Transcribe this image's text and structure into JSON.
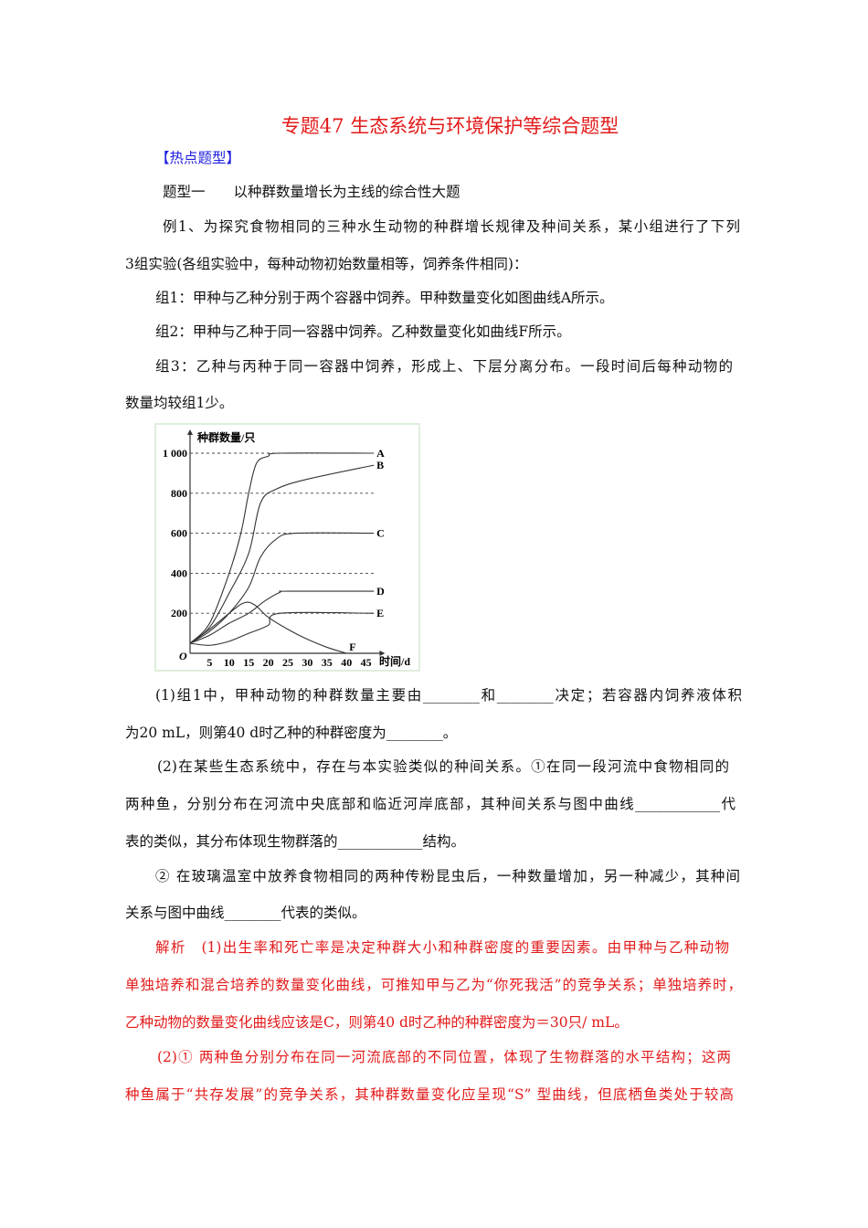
{
  "title": "专题47  生态系统与环境保护等综合题型",
  "section_tag": "【热点题型】",
  "type_heading": "题型一　　以种群数量增长为主线的综合性大题",
  "lines": [
    "例1、为探究食物相同的三种水生动物的种群增长规律及种间关系，某小组进行了下列",
    "3组实验(各组实验中，每种动物初始数量相等，饲养条件相同)：",
    "组1：甲种与乙种分别于两个容器中饲养。甲种数量变化如图曲线A所示。",
    "组2：甲种与乙种于同一容器中饲养。乙种数量变化如曲线F所示。",
    "组3：乙种与丙种于同一容器中饲养，形成上、下层分离分布。一段时间后每种动物的",
    "数量均较组1少。"
  ],
  "questions": [
    "(1)组1中，甲种动物的种群数量主要由________和________决定；若容器内饲养液体积",
    "为20 mL，则第40 d时乙种的种群密度为________。",
    "(2)在某些生态系统中，存在与本实验类似的种间关系。①在同一段河流中食物相同的",
    "两种鱼，分别分布在河流中央底部和临近河岸底部，其种间关系与图中曲线____________代",
    "表的类似，其分布体现生物群落的____________结构。",
    "② 在玻璃温室中放养食物相同的两种传粉昆虫后，一种数量增加，另一种减少，其种间",
    "关系与图中曲线________代表的类似。"
  ],
  "analysis": [
    "解析　(1)出生率和死亡率是决定种群大小和种群密度的重要因素。由甲种与乙种动物",
    "单独培养和混合培养的数量变化曲线，可推知甲与乙为“你死我活”的竞争关系；单独培养时，",
    "乙种动物的数量变化曲线应该是C，则第40 d时乙种的种群密度为＝30只/ mL。",
    "(2)① 两种鱼分别分布在同一河流底部的不同位置，体现了生物群落的水平结构；这两",
    "种鱼属于“共存发展”的竞争关系，其种群数量变化应呈现“S” 型曲线，但底栖鱼类处于较高"
  ],
  "colors": {
    "title": "#e31a1a",
    "tag": "#1f1fe0",
    "analysis": "#e31a1a"
  },
  "chart_data": {
    "type": "line",
    "ylabel": "种群数量/只",
    "xlabel": "时间/d",
    "origin_label": "O",
    "xlim": [
      0,
      48
    ],
    "ylim": [
      0,
      1050
    ],
    "xticks": [
      5,
      10,
      15,
      20,
      25,
      30,
      35,
      40,
      45
    ],
    "yticks": [
      200,
      400,
      600,
      800,
      1000
    ],
    "ytick_labels": [
      "200",
      "400",
      "600",
      "800",
      "1 000"
    ],
    "grid": "dashed horizontal at y ticks",
    "series": [
      {
        "name": "A",
        "x": [
          0,
          5,
          10,
          13,
          15,
          17,
          20,
          23,
          47
        ],
        "y": [
          50,
          150,
          400,
          600,
          800,
          950,
          985,
          1000,
          1000
        ]
      },
      {
        "name": "B",
        "x": [
          0,
          5,
          10,
          15,
          18,
          22,
          30,
          47
        ],
        "y": [
          50,
          130,
          300,
          500,
          750,
          820,
          870,
          940
        ]
      },
      {
        "name": "C",
        "x": [
          0,
          5,
          10,
          15,
          18,
          22,
          27,
          47
        ],
        "y": [
          50,
          110,
          200,
          330,
          480,
          570,
          600,
          600
        ]
      },
      {
        "name": "D",
        "x": [
          0,
          5,
          10,
          15,
          19,
          23,
          25,
          47
        ],
        "y": [
          50,
          90,
          150,
          200,
          260,
          305,
          310,
          310
        ]
      },
      {
        "name": "E",
        "x": [
          0,
          5,
          10,
          15,
          20,
          23,
          47
        ],
        "y": [
          50,
          40,
          60,
          100,
          140,
          200,
          200
        ]
      },
      {
        "name": "F",
        "x": [
          0,
          5,
          10,
          13,
          15,
          17,
          20,
          25,
          30,
          35,
          40
        ],
        "y": [
          50,
          120,
          200,
          245,
          255,
          235,
          180,
          120,
          70,
          30,
          0
        ]
      }
    ]
  }
}
